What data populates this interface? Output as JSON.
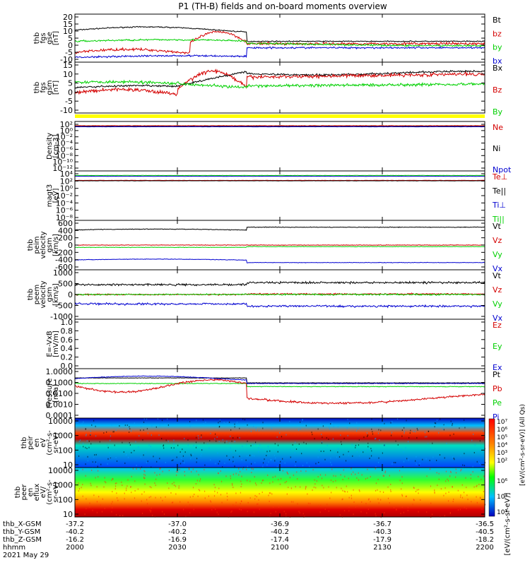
{
  "title": "P1 (TH-B) fields and on-board moments overview",
  "colors": {
    "black": "#000000",
    "red": "#d40000",
    "green": "#00d000",
    "blue": "#0000d0",
    "yellow": "#ffff00"
  },
  "chart_data": [
    {
      "type": "line",
      "id": "fgs-gse",
      "ylabel": [
        "thb",
        "fgs",
        "gse",
        "[nT]"
      ],
      "ylim": [
        -10,
        20
      ],
      "yticks": [
        "20",
        "15",
        "10",
        "5",
        "0",
        "-5",
        "-10"
      ],
      "legend": [
        {
          "name": "Bt",
          "color": "#000000"
        },
        {
          "name": "bz",
          "color": "#d40000"
        },
        {
          "name": "by",
          "color": "#00d000"
        },
        {
          "name": "bx",
          "color": "#0000d0"
        }
      ]
    },
    {
      "type": "line",
      "id": "fgs-gsm",
      "ylabel": [
        "thb",
        "fgs",
        "gsm",
        "[nT]"
      ],
      "ylim": [
        -13,
        15
      ],
      "yticks": [
        "15",
        "10",
        "5",
        "0",
        "-5",
        "-10"
      ],
      "legend": [
        {
          "name": "Bx",
          "color": "#000000"
        },
        {
          "name": "Bz",
          "color": "#d40000"
        },
        {
          "name": "By",
          "color": "#00d000"
        }
      ]
    },
    {
      "type": "bar",
      "id": "mode-bar",
      "color": "#ffff00"
    },
    {
      "type": "line",
      "id": "density",
      "scale": "log",
      "ylabel": [
        "Density",
        "[cm-3]"
      ],
      "yticks": [
        "10²",
        "10⁰",
        "10⁻²",
        "10⁻⁴",
        "10⁻⁶",
        "10⁻⁸",
        "10⁻¹⁰",
        "10⁻¹²"
      ],
      "legend": [
        {
          "name": "Ne",
          "color": "#d40000"
        },
        {
          "name": "Ni",
          "color": "#000000"
        },
        {
          "name": "Npot",
          "color": "#0000d0"
        }
      ]
    },
    {
      "type": "line",
      "id": "temp",
      "scale": "log",
      "ylabel": [
        "magt3",
        "[eV]"
      ],
      "yticks": [
        "10⁴",
        "10²",
        "10⁰",
        "10⁻²",
        "10⁻⁴",
        "10⁻⁶",
        "10⁻⁸"
      ],
      "legend": [
        {
          "name": "Te⊥",
          "color": "#d40000"
        },
        {
          "name": "Te||",
          "color": "#000000"
        },
        {
          "name": "Ti⊥",
          "color": "#0000d0"
        },
        {
          "name": "Ti||",
          "color": "#00d000"
        }
      ]
    },
    {
      "type": "line",
      "id": "peim-vel",
      "ylabel": [
        "thb",
        "peim",
        "velocity",
        "gsm",
        "[km/s]"
      ],
      "ylim": [
        -650,
        650
      ],
      "yticks": [
        "600",
        "400",
        "200",
        "0",
        "-200",
        "-400",
        "-600"
      ],
      "legend": [
        {
          "name": "Vt",
          "color": "#000000"
        },
        {
          "name": "Vz",
          "color": "#d40000"
        },
        {
          "name": "Vy",
          "color": "#00d000"
        },
        {
          "name": "Vx",
          "color": "#0000d0"
        }
      ]
    },
    {
      "type": "line",
      "id": "peem-vel",
      "ylabel": [
        "thb",
        "peem",
        "velocity",
        "gsm",
        "[km/s]"
      ],
      "ylim": [
        -1000,
        1000
      ],
      "yticks": [
        "1000",
        "500",
        "0",
        "-500",
        "-1000"
      ],
      "legend": [
        {
          "name": "Vt",
          "color": "#000000"
        },
        {
          "name": "Vz",
          "color": "#d40000"
        },
        {
          "name": "Vy",
          "color": "#00d000"
        },
        {
          "name": "Vx",
          "color": "#0000d0"
        }
      ]
    },
    {
      "type": "line",
      "id": "efield",
      "ylabel": [
        "E=-VxB",
        "[mV/m]"
      ],
      "ylim": [
        0,
        1
      ],
      "yticks": [
        "1.0",
        "0.8",
        "0.6",
        "0.4",
        "0.2",
        "0.0"
      ],
      "legend": [
        {
          "name": "Ez",
          "color": "#d40000"
        },
        {
          "name": "Ey",
          "color": "#00d000"
        },
        {
          "name": "Ex",
          "color": "#0000d0"
        }
      ]
    },
    {
      "type": "line",
      "id": "pressure",
      "scale": "log",
      "ylabel": [
        "Pressure",
        "[nPa]"
      ],
      "yticks": [
        "1.0000",
        "0.1000",
        "0.0100",
        "0.0010",
        "0.0001"
      ],
      "legend": [
        {
          "name": "Pt",
          "color": "#000000"
        },
        {
          "name": "Pb",
          "color": "#d40000"
        },
        {
          "name": "Pe",
          "color": "#00d000"
        },
        {
          "name": "Pi",
          "color": "#0000d0"
        }
      ]
    },
    {
      "type": "heatmap",
      "id": "peir-eflux",
      "ylabel": [
        "thb",
        "peir",
        "en",
        "eV",
        "(cm²-s-",
        "sr-eV)"
      ],
      "yticks": [
        "10000",
        "1000",
        "100",
        "10"
      ],
      "colorbar_label": "[eV/(cm²-s-sr-eV)] (All Qs)",
      "colorbar_ticks": [
        "10⁷",
        "10⁶",
        "10⁵",
        "10⁴",
        "10³",
        "10²"
      ]
    },
    {
      "type": "heatmap",
      "id": "peer-eflux",
      "ylabel": [
        "thb",
        "peer",
        "en",
        "eflux",
        "eV/",
        "(cm²-s-",
        "sr-eV)"
      ],
      "yticks": [
        "10000",
        "1000",
        "100",
        "10"
      ],
      "colorbar_label": "[eV/(cm²-s-sr-eV)]",
      "colorbar_ticks": [
        "10⁶",
        "10⁴",
        "10²"
      ]
    }
  ],
  "xaxis": {
    "rows": [
      {
        "label": "thb_X-GSM",
        "values": [
          "-37.2",
          "-37.0",
          "-36.9",
          "-36.7",
          "-36.5"
        ]
      },
      {
        "label": "thb_Y-GSM",
        "values": [
          "-40.2",
          "-40.2",
          "-40.2",
          "-40.3",
          "-40.5"
        ]
      },
      {
        "label": "thb_Z-GSM",
        "values": [
          "-16.2",
          "-16.9",
          "-17.4",
          "-17.9",
          "-18.2"
        ]
      },
      {
        "label": "hhmm",
        "values": [
          "2000",
          "2030",
          "2100",
          "2130",
          "2200"
        ]
      }
    ],
    "date": "2021 May 29"
  }
}
